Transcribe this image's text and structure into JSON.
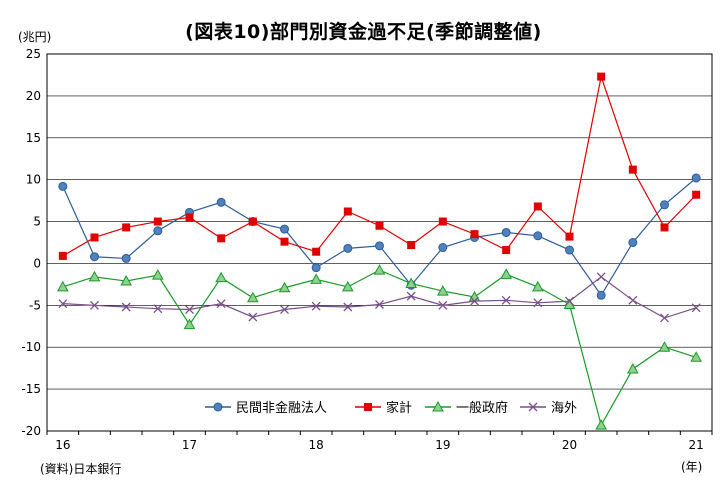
{
  "title": "(図表10)部門別資金過不足(季節調整値)",
  "unit": "(兆円)",
  "source": "(資料)日本銀行",
  "year_unit": "(年)",
  "chart_data": {
    "type": "line",
    "title": "(図表10)部門別資金過不足(季節調整値)",
    "ylabel": "(兆円)",
    "xlabel": "(年)",
    "ylim": [
      -20,
      25
    ],
    "yticks": [
      -20,
      -15,
      -10,
      -5,
      0,
      5,
      10,
      15,
      20,
      25
    ],
    "x_tick_labels": [
      "16",
      "17",
      "18",
      "19",
      "20",
      "21"
    ],
    "x": [
      "2016Q1",
      "2016Q2",
      "2016Q3",
      "2016Q4",
      "2017Q1",
      "2017Q2",
      "2017Q3",
      "2017Q4",
      "2018Q1",
      "2018Q2",
      "2018Q3",
      "2018Q4",
      "2019Q1",
      "2019Q2",
      "2019Q3",
      "2019Q4",
      "2020Q1",
      "2020Q2",
      "2020Q3",
      "2020Q4",
      "2021Q1"
    ],
    "grid": true,
    "legend_position": "bottom",
    "series": [
      {
        "name": "民間非金融法人",
        "color": "#2e5c9a",
        "marker": "circle",
        "values": [
          9.2,
          0.8,
          0.6,
          3.9,
          6.1,
          7.3,
          5.0,
          4.1,
          -0.5,
          1.8,
          2.1,
          -2.6,
          1.9,
          3.1,
          3.7,
          3.3,
          1.6,
          -3.8,
          2.5,
          7.0,
          10.2
        ]
      },
      {
        "name": "家計",
        "color": "#e00000",
        "marker": "square",
        "values": [
          0.9,
          3.1,
          4.3,
          5.0,
          5.5,
          3.0,
          5.0,
          2.6,
          1.4,
          6.2,
          4.5,
          2.2,
          5.0,
          3.5,
          1.6,
          6.8,
          3.2,
          22.3,
          11.2,
          4.3,
          8.2
        ]
      },
      {
        "name": "一般政府",
        "color": "#1a9a2a",
        "marker": "triangle",
        "values": [
          -2.8,
          -1.6,
          -2.1,
          -1.4,
          -7.3,
          -1.7,
          -4.1,
          -2.9,
          -1.9,
          -2.8,
          -0.8,
          -2.4,
          -3.3,
          -4.0,
          -1.3,
          -2.8,
          -4.9,
          -19.3,
          -12.6,
          -10.0,
          -11.2
        ]
      },
      {
        "name": "海外",
        "color": "#7a4f8a",
        "marker": "x",
        "values": [
          -4.8,
          -5.0,
          -5.2,
          -5.4,
          -5.5,
          -4.8,
          -6.4,
          -5.5,
          -5.1,
          -5.2,
          -4.9,
          -3.9,
          -5.0,
          -4.5,
          -4.4,
          -4.7,
          -4.5,
          -1.6,
          -4.4,
          -6.5,
          -5.3
        ]
      }
    ]
  }
}
